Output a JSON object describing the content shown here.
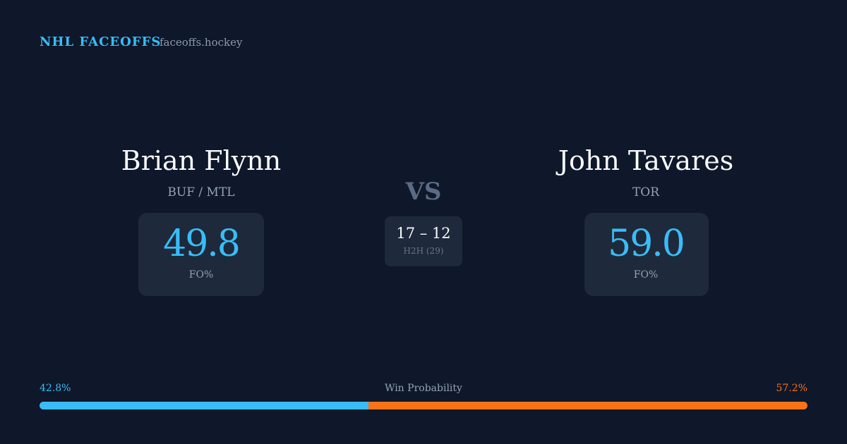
{
  "header": {
    "brand": "NHL FACEOFFS",
    "site": "faceoffs.hockey"
  },
  "players": [
    {
      "name": "Brian Flynn",
      "team": "BUF / MTL",
      "stat": "49.8",
      "stat_label": "FO%"
    },
    {
      "name": "John Tavares",
      "team": "TOR",
      "stat": "59.0",
      "stat_label": "FO%"
    }
  ],
  "versus": "VS",
  "head_to_head": {
    "score": "17 – 12",
    "label": "H2H (29)"
  },
  "win_probability": {
    "label": "Win Probability",
    "left": {
      "value": 42.8,
      "label": "42.8%",
      "color": "#38bdf8"
    },
    "right": {
      "value": 57.2,
      "label": "57.2%",
      "color": "#f97316"
    }
  }
}
